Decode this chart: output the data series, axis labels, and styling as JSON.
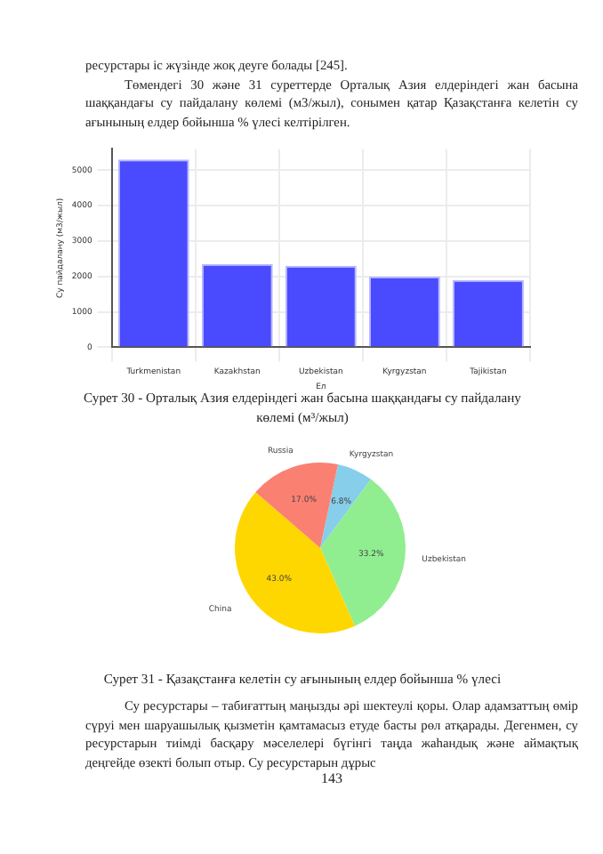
{
  "chart_data": [
    {
      "type": "bar",
      "title": "Сурет 30 - Орталық Азия елдеріндегі жан басына шаққандағы су пайдалану көлемі (м³/жыл)",
      "xlabel": "Ел",
      "ylabel": "Су пайдалану (м3/жыл)",
      "annotations": [
        "ресурстары іс жүзінде жоқ деуге болады [245].",
        "Төмендегі 30 және 31 суреттерде Орталық Азия елдеріндегі жан басына шаққандағы су пайдалану көлемі (м3/жыл), сонымен қатар Қазақстанға келетін су ағынының елдер бойынша % үлесі келтірілген."
      ],
      "categories": [
        "Turkmenistan",
        "Kazakhstan",
        "Uzbekistan",
        "Kyrgyzstan",
        "Tajikistan"
      ],
      "values": [
        5300,
        2350,
        2300,
        2000,
        1900
      ],
      "color": "#4a4aff",
      "ylim": [
        0,
        5600
      ],
      "yticks": [
        0,
        1000,
        2000,
        3000,
        4000,
        5000
      ],
      "grid": true
    },
    {
      "type": "pie",
      "title": "Сурет 31 - Қазақстанға келетін су ағынының елдер бойынша % үлесі",
      "annotations": [
        "Су ресурстары – табиғаттың маңызды әрі шектеулі қоры. Олар адамзаттың өмір сүруі мен шаруашылық қызметін қамтамасыз етуде басты рөл атқарады. Дегенмен, су ресурстарын тиімді басқару мәселелері бүгінгі таңда жаһандық және аймақтық деңгейде өзекті болып отыр. Су ресурстарын дұрыс",
        "143"
      ],
      "categories": [
        "Kyrgyzstan",
        "Uzbekistan",
        "China",
        "Russia"
      ],
      "values": [
        6.8,
        33.2,
        43.0,
        17.0
      ],
      "colors": [
        "#87ceeb",
        "#90ee90",
        "#ffd700",
        "#fa8072"
      ],
      "value_labels": [
        "6.8%",
        "33.2%",
        "43.0%",
        "17.0%"
      ]
    }
  ]
}
